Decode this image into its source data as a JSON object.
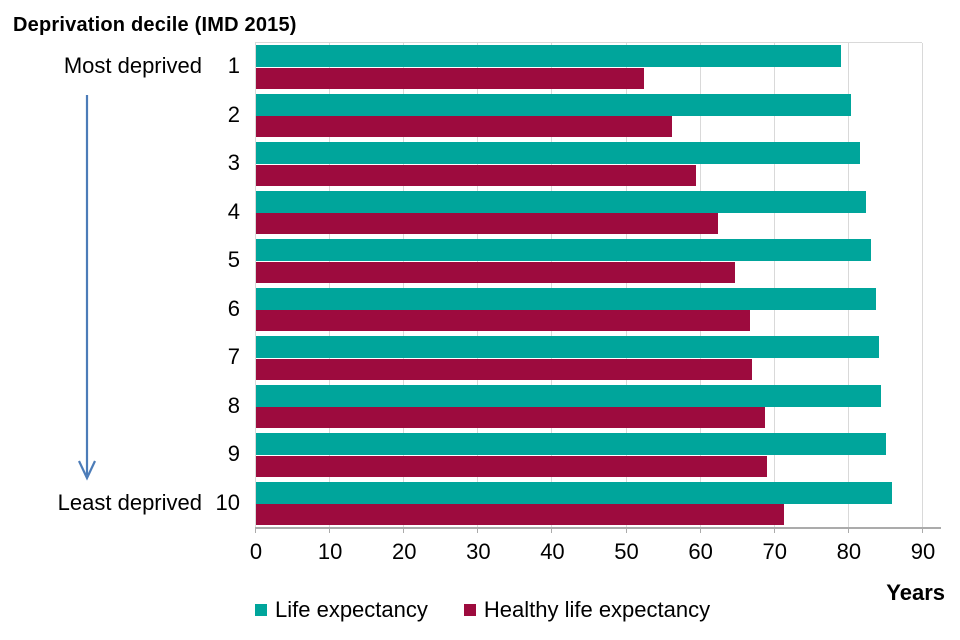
{
  "chart_data": {
    "type": "bar",
    "orientation": "horizontal",
    "title": "Deprivation decile (IMD 2015)",
    "xlabel": "Years",
    "xlim": [
      0,
      90
    ],
    "xticks": [
      0,
      10,
      20,
      30,
      40,
      50,
      60,
      70,
      80,
      90
    ],
    "grid": true,
    "legend_position": "bottom",
    "categories": [
      "1",
      "2",
      "3",
      "4",
      "5",
      "6",
      "7",
      "8",
      "9",
      "10"
    ],
    "category_annotations": {
      "first": "Most deprived",
      "last": "Least deprived"
    },
    "series": [
      {
        "name": "Life expectancy",
        "color": "#00A59B",
        "values": [
          79.0,
          80.4,
          81.6,
          82.4,
          83.1,
          83.8,
          84.2,
          84.5,
          85.1,
          86.0
        ]
      },
      {
        "name": "Healthy life expectancy",
        "color": "#9D0B3E",
        "values": [
          52.4,
          56.2,
          59.5,
          62.4,
          64.7,
          66.7,
          67.0,
          68.8,
          69.0,
          71.4
        ]
      }
    ],
    "style_colors": {
      "gridline": "#D9D9D9",
      "axis_line": "#ABABAB",
      "arrow": "#4C7CB8",
      "text": "#000000"
    }
  }
}
